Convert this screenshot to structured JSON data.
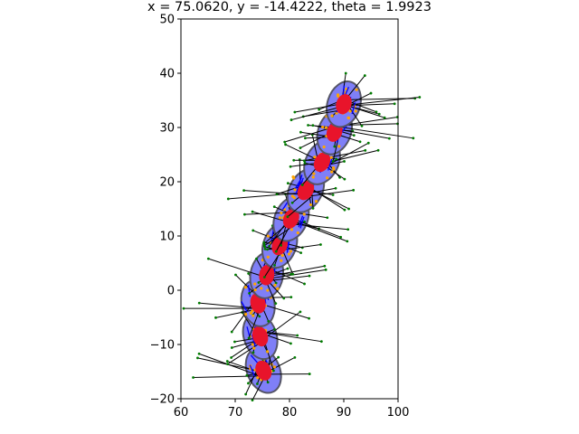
{
  "chart_data": {
    "type": "scatter",
    "title": "x = 75.0620, y = -14.4222, theta = 1.9923",
    "xlabel": "",
    "ylabel": "",
    "xlim": [
      60,
      100
    ],
    "ylim": [
      -20,
      50
    ],
    "xticks": [
      "60",
      "70",
      "80",
      "90",
      "100"
    ],
    "yticks": [
      "−20",
      "−10",
      "0",
      "10",
      "20",
      "30",
      "40",
      "50"
    ],
    "grid": false,
    "colors": {
      "ellipse_fill": "#7f7ff7",
      "ellipse_edge": "#555566",
      "red_ellipse": "#e8142b",
      "ray": "#000000",
      "measurement_point": "#007a00",
      "particle": "#ffa500",
      "heading": "#0000ff"
    },
    "poses": [
      {
        "x": 75.2,
        "y": -14.8,
        "theta": 1.99
      },
      {
        "x": 74.6,
        "y": -8.5,
        "theta": 1.9
      },
      {
        "x": 74.2,
        "y": -2.4,
        "theta": 1.8
      },
      {
        "x": 75.8,
        "y": 2.8,
        "theta": 1.4
      },
      {
        "x": 78.2,
        "y": 8.3,
        "theta": 1.2
      },
      {
        "x": 80.3,
        "y": 13.2,
        "theta": 1.15
      },
      {
        "x": 83.0,
        "y": 18.4,
        "theta": 1.05
      },
      {
        "x": 86.0,
        "y": 23.6,
        "theta": 1.1
      },
      {
        "x": 88.3,
        "y": 29.2,
        "theta": 1.2
      },
      {
        "x": 90.0,
        "y": 34.3,
        "theta": 1.25
      }
    ],
    "ray_spread": 9,
    "rays_per_pose": 16
  }
}
